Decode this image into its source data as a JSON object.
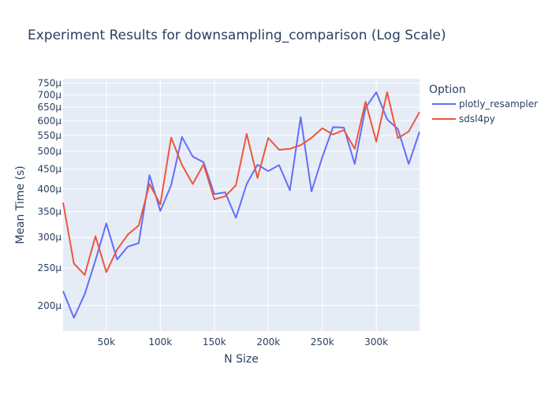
{
  "chart_data": {
    "type": "line",
    "title": "Experiment Results for downsampling_comparison (Log Scale)",
    "xlabel": "N Size",
    "ylabel": "Mean Time (s)",
    "y_scale": "log",
    "xlim": [
      10000,
      340000
    ],
    "ylim": [
      0.000172,
      0.00077
    ],
    "grid": true,
    "legend_title": "Option",
    "legend_position": "right",
    "x_ticks": [
      {
        "value": 50000,
        "label": "50k"
      },
      {
        "value": 100000,
        "label": "100k"
      },
      {
        "value": 150000,
        "label": "150k"
      },
      {
        "value": 200000,
        "label": "200k"
      },
      {
        "value": 250000,
        "label": "250k"
      },
      {
        "value": 300000,
        "label": "300k"
      }
    ],
    "y_ticks": [
      {
        "value": 0.0002,
        "label": "200µ"
      },
      {
        "value": 0.00025,
        "label": "250µ"
      },
      {
        "value": 0.0003,
        "label": "300µ"
      },
      {
        "value": 0.00035,
        "label": "350µ"
      },
      {
        "value": 0.0004,
        "label": "400µ"
      },
      {
        "value": 0.00045,
        "label": "450µ"
      },
      {
        "value": 0.0005,
        "label": "500µ"
      },
      {
        "value": 0.00055,
        "label": "550µ"
      },
      {
        "value": 0.0006,
        "label": "600µ"
      },
      {
        "value": 0.00065,
        "label": "650µ"
      },
      {
        "value": 0.0007,
        "label": "700µ"
      },
      {
        "value": 0.00075,
        "label": "750µ"
      }
    ],
    "x": [
      10000,
      20000,
      30000,
      40000,
      50000,
      60000,
      70000,
      80000,
      90000,
      100000,
      110000,
      120000,
      130000,
      140000,
      150000,
      160000,
      170000,
      180000,
      190000,
      200000,
      210000,
      220000,
      230000,
      240000,
      250000,
      260000,
      270000,
      280000,
      290000,
      300000,
      310000,
      320000,
      330000,
      340000
    ],
    "series": [
      {
        "name": "plotly_resampler",
        "color": "#636efa",
        "values": [
          0.000218,
          0.000186,
          0.000214,
          0.000262,
          0.000326,
          0.000263,
          0.000284,
          0.00029,
          0.000434,
          0.000351,
          0.000409,
          0.000545,
          0.000485,
          0.000469,
          0.000388,
          0.000392,
          0.000337,
          0.000412,
          0.000462,
          0.000445,
          0.000461,
          0.000397,
          0.000613,
          0.000394,
          0.000483,
          0.000578,
          0.000576,
          0.000464,
          0.000648,
          0.000711,
          0.000605,
          0.000571,
          0.000464,
          0.000562
        ]
      },
      {
        "name": "sdsl4py",
        "color": "#ef553b",
        "values": [
          0.000369,
          0.000257,
          0.00024,
          0.000302,
          0.000244,
          0.000279,
          0.000305,
          0.000322,
          0.000412,
          0.000365,
          0.000543,
          0.000462,
          0.000412,
          0.000463,
          0.000376,
          0.000383,
          0.000409,
          0.000555,
          0.000427,
          0.000542,
          0.000505,
          0.000508,
          0.000519,
          0.000542,
          0.000574,
          0.000553,
          0.000568,
          0.000508,
          0.000672,
          0.00053,
          0.000711,
          0.000541,
          0.000563,
          0.000632
        ]
      }
    ]
  }
}
